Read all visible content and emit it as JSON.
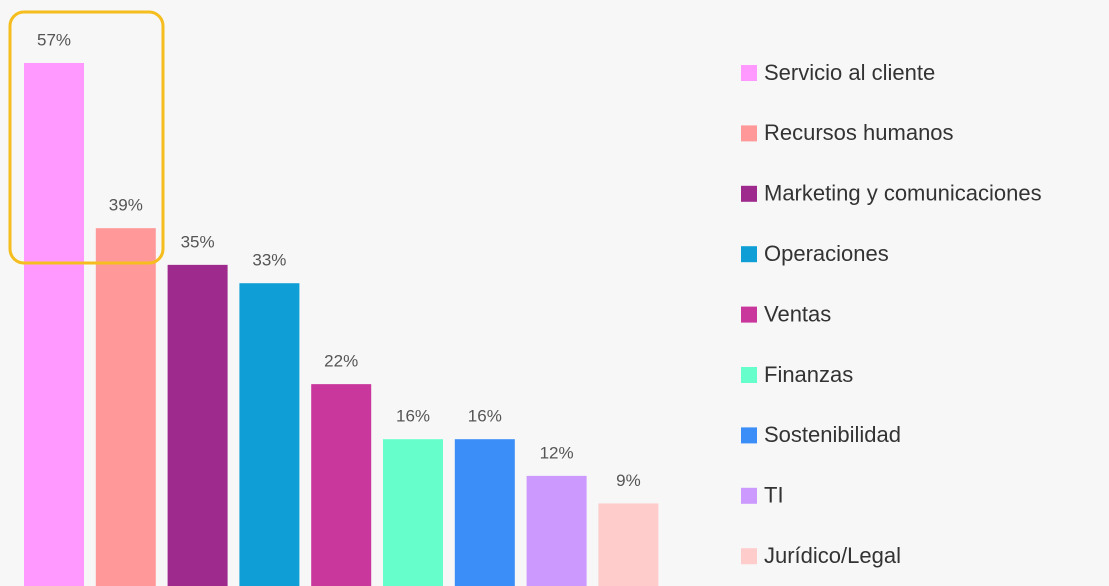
{
  "chart_data": {
    "type": "bar",
    "categories": [
      "Servicio al cliente",
      "Recursos humanos",
      "Marketing y comunicaciones",
      "Operaciones",
      "Ventas",
      "Finanzas",
      "Sostenibilidad",
      "TI",
      "Jurídico/Legal"
    ],
    "values": [
      57,
      39,
      35,
      33,
      22,
      16,
      16,
      12,
      9
    ],
    "value_labels": [
      "57%",
      "39%",
      "35%",
      "33%",
      "22%",
      "16%",
      "16%",
      "12%",
      "9%"
    ],
    "colors": [
      "#ff99ff",
      "#ff9999",
      "#9e2a8e",
      "#0f9fd6",
      "#c9369c",
      "#66ffcc",
      "#3b8ef7",
      "#cc99ff",
      "#ffcccc"
    ],
    "legend": "right"
  }
}
